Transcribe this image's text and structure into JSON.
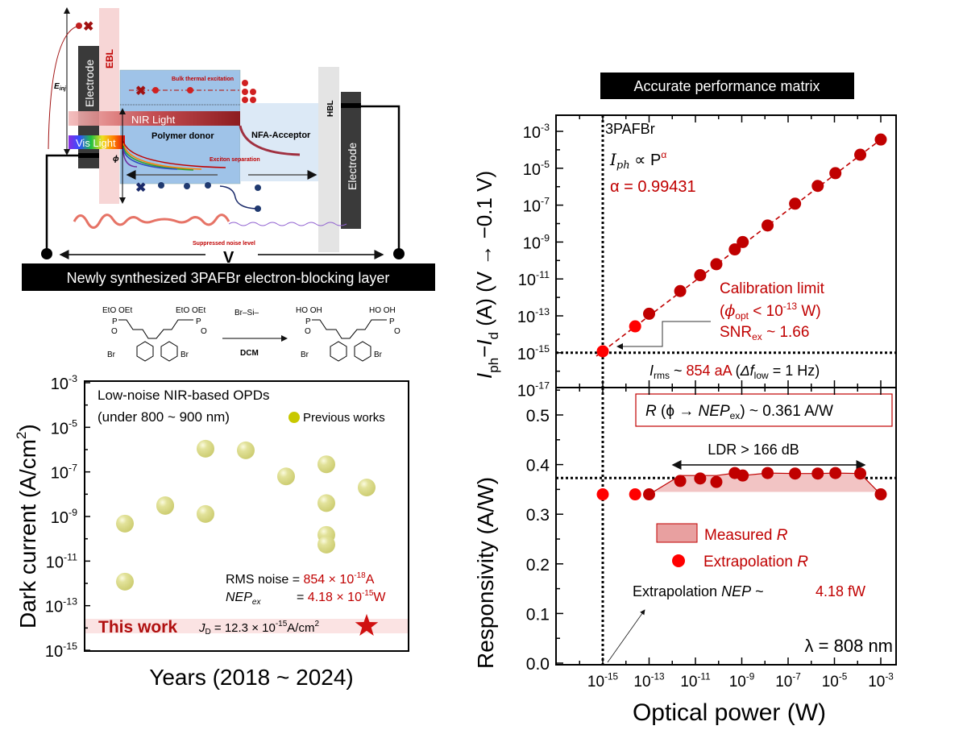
{
  "colors": {
    "dark_red": "#c00000",
    "bright_red": "#ff0000",
    "previous_works": "#d2d27a",
    "star": "#d01010"
  },
  "diagram": {
    "electrode_left": "Electrode",
    "ebl": "EBL",
    "e_inj": "E",
    "e_inj_sub": "inj",
    "bulk_thermal": "Bulk thermal excitation",
    "nir_light": "NIR Light",
    "vis_light": "Vis Light",
    "polymer_donor": "Polymer donor",
    "nfa_acceptor": "NFA-Acceptor",
    "hbl": "HBL",
    "electrode_right": "Electrode",
    "phi": "ϕ",
    "exciton_separation": "Exciton separation",
    "suppressed_noise": "Suppressed noise level",
    "voltage": "V",
    "banner": "Newly synthesized 3PAFBr electron-blocking layer"
  },
  "chemistry": {
    "reactant_groups": "EtO OEt",
    "product_groups": "HO OH",
    "phosphorus": "P",
    "oxygen": "O",
    "bromine": "Br",
    "reagent": "Br–Si–",
    "solvent": "DCM"
  },
  "right_title": "Accurate performance matrix",
  "chart_data": [
    {
      "type": "scatter",
      "title": "",
      "xlabel": "Years (2018 ~ 2024)",
      "ylabel": "Dark current (A/cm",
      "ylabel_sup": "2",
      "ylabel_end": ")",
      "yscale": "log",
      "ylim": [
        1e-15,
        0.001
      ],
      "ytick_exponents": [
        -3,
        -5,
        -7,
        -9,
        -11,
        -13,
        -15
      ],
      "legend": {
        "label": "Previous works",
        "placement": "top-right"
      },
      "heading_line1": "Low-noise NIR-based OPDs",
      "heading_line2": "(under 800 ~ 900 nm)",
      "series": [
        {
          "name": "Previous works",
          "points": [
            {
              "x": 2018,
              "y": 4.8e-10
            },
            {
              "x": 2018,
              "y": 1.2e-12
            },
            {
              "x": 2019,
              "y": 3.2e-09
            },
            {
              "x": 2019,
              "y": 3e-09
            },
            {
              "x": 2020,
              "y": 1.1e-06
            },
            {
              "x": 2020,
              "y": 1.3e-09
            },
            {
              "x": 2021,
              "y": 9.3e-07
            },
            {
              "x": 2022,
              "y": 6.3e-08
            },
            {
              "x": 2023,
              "y": 2.2e-07
            },
            {
              "x": 2023,
              "y": 4e-09
            },
            {
              "x": 2023,
              "y": 1.5e-10
            },
            {
              "x": 2023,
              "y": 5.5e-11
            },
            {
              "x": 2024,
              "y": 2e-08
            }
          ]
        },
        {
          "name": "This work",
          "points": [
            {
              "x": 2024,
              "y": 1.23e-14
            }
          ]
        }
      ],
      "annotations": {
        "rms_label": "RMS noise =",
        "rms_value": "854 × 10",
        "rms_exp": "-18",
        "rms_unit": "A",
        "nep_label": "NEP",
        "nep_sub": "ex",
        "nep_eq": "=",
        "nep_value": "4.18 × 10",
        "nep_exp": "-15",
        "nep_unit": "W",
        "this_work": "This work",
        "jd_label": "J",
        "jd_sub": "D",
        "jd_value": "= 12.3 × 10",
        "jd_exp": "-15",
        "jd_unit": "A/cm",
        "jd_unit_sup": "2"
      }
    },
    {
      "type": "line",
      "title": "",
      "xlabel": "Optical power (W)",
      "ylabel_parts": [
        "I",
        "ph",
        "−",
        "I",
        "d",
        " (A) (V → −0.1 V)"
      ],
      "xscale": "log",
      "yscale": "log",
      "xlim": [
        1e-16,
        0.003
      ],
      "ylim": [
        1e-17,
        0.01
      ],
      "ytick_exponents": [
        -3,
        -5,
        -7,
        -9,
        -11,
        -13,
        -15,
        -17
      ],
      "x": [
        1e-15,
        2.5e-14,
        1e-13,
        2.2e-12,
        1.6e-11,
        8e-11,
        5e-10,
        1.1e-09,
        1.3e-08,
        2e-07,
        1.9e-06,
        1.1e-05,
        0.00013,
        0.001
      ],
      "y": [
        1.2e-15,
        2.7e-14,
        1.3e-13,
        2.2e-12,
        1.6e-11,
        6.3e-11,
        4e-10,
        1e-09,
        7.9e-09,
        1.2e-07,
        1.1e-06,
        5.4e-06,
        5.4e-05,
        0.00036
      ],
      "extrapolated_indices": [
        0,
        1
      ],
      "fit": {
        "type": "power law",
        "alpha": 0.99431
      },
      "reference_lines": {
        "vertical_x": 1e-15,
        "horizontal_y": 1e-15
      },
      "annotations": {
        "sample": "3PAFBr",
        "law_i": "I",
        "law_sub": "ph",
        "law_mid": " ∝ P",
        "law_sup": "α",
        "alpha": "α = 0.99431",
        "calib_title": "Calibration limit",
        "calib_open": "(",
        "calib_phi": "ϕ",
        "calib_sub": "opt",
        "calib_lt": " < 10",
        "calib_exp": "-13",
        "calib_unit": " W)",
        "snr": "SNR",
        "snr_sub": "ex",
        "snr_value": " ~ 1.66",
        "irms_i": "I",
        "irms_sub": "rms",
        "irms_tilde": " ~ ",
        "irms_value": "854 aA",
        "irms_bw_open": " (",
        "irms_delta": "Δf",
        "irms_bw_sub": "low",
        "irms_bw_end": " = 1 Hz)"
      }
    },
    {
      "type": "line",
      "title": "",
      "xlabel": "Optical power (W)",
      "ylabel": "Responsivity (A/W)",
      "xscale": "log",
      "xtick_exponents": [
        -15,
        -13,
        -11,
        -9,
        -7,
        -5,
        -3
      ],
      "ylim": [
        0.0,
        0.55
      ],
      "yticks": [
        "0.0",
        "0.1",
        "0.2",
        "0.3",
        "0.4",
        "0.5"
      ],
      "x": [
        1e-15,
        2.5e-14,
        1e-13,
        2.2e-12,
        1.6e-11,
        8e-11,
        5e-10,
        1.1e-09,
        1.3e-08,
        2e-07,
        1.9e-06,
        1.1e-05,
        0.00013,
        0.001
      ],
      "y": [
        0.34,
        0.34,
        0.34,
        0.367,
        0.372,
        0.365,
        0.383,
        0.378,
        0.383,
        0.382,
        0.382,
        0.383,
        0.382,
        0.34
      ],
      "extrapolated_indices": [
        0,
        1
      ],
      "reference_lines": {
        "vertical_x": 1e-15,
        "horizontal_y": 0.373
      },
      "legend": [
        {
          "label": "Measured ",
          "label_italic": "R",
          "kind": "area"
        },
        {
          "label": "Extrapolation ",
          "label_italic": "R",
          "kind": "marker"
        }
      ],
      "annotations": {
        "r_box_r": "R",
        "r_box_mid": " (ϕ → ",
        "r_box_nep": "NEP",
        "r_box_sub": "ex",
        "r_box_value": ") ~ 0.361 A/W",
        "ldr": "LDR > 166 dB",
        "nep_label": "Extrapolation ",
        "nep_italic": "NEP",
        "nep_tilde": " ~",
        "nep_value": "4.18 fW",
        "wavelength": "λ = 808 nm"
      }
    }
  ]
}
